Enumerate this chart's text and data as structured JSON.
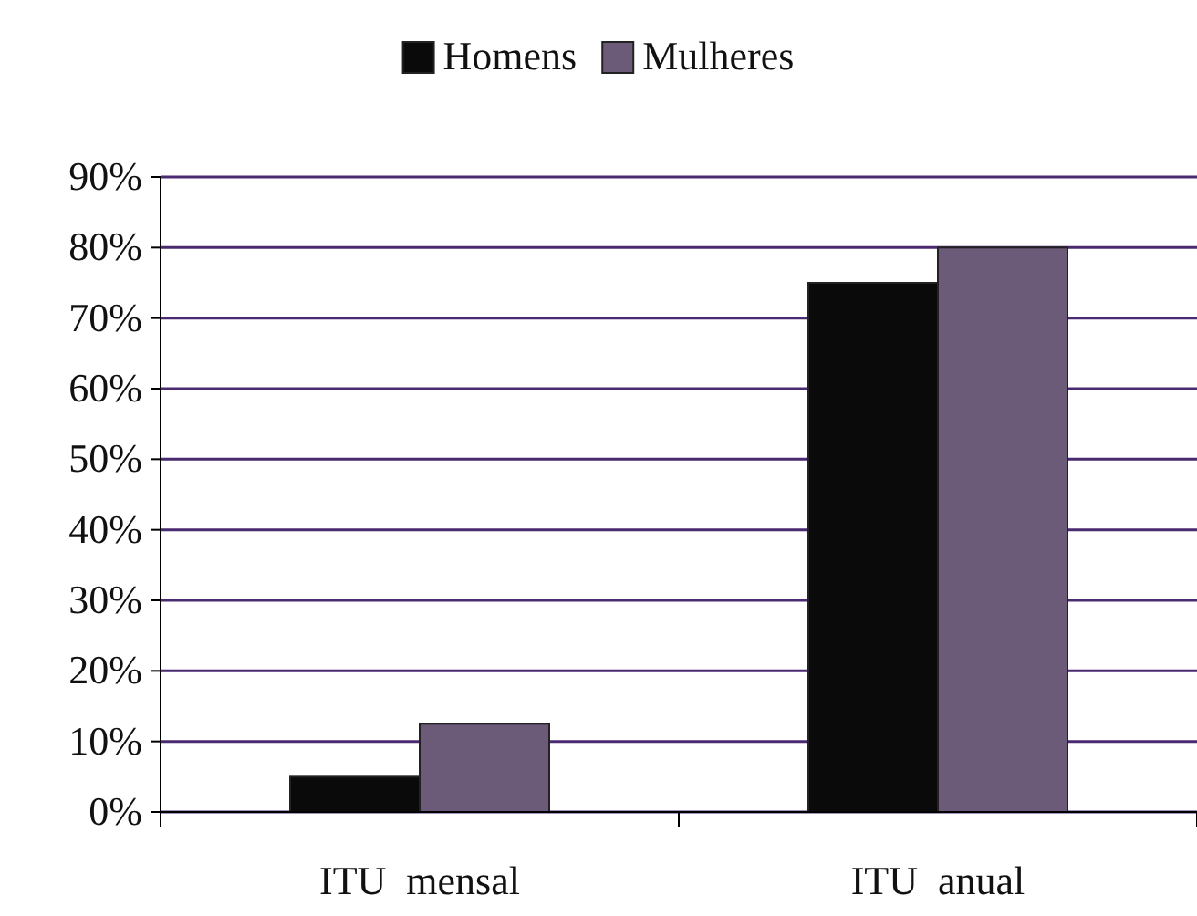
{
  "chart_data": {
    "type": "bar",
    "categories": [
      "ITU  mensal",
      "ITU  anual"
    ],
    "series": [
      {
        "name": "Homens",
        "color": "#0a0a0a",
        "values": [
          5,
          75
        ]
      },
      {
        "name": "Mulheres",
        "color": "#6b5a78",
        "values": [
          12.5,
          80
        ]
      }
    ],
    "ylim": [
      0,
      90
    ],
    "yticks": [
      {
        "value": 0,
        "label": "0%"
      },
      {
        "value": 10,
        "label": "10%"
      },
      {
        "value": 20,
        "label": "20%"
      },
      {
        "value": 30,
        "label": "30%"
      },
      {
        "value": 40,
        "label": "40%"
      },
      {
        "value": 50,
        "label": "50%"
      },
      {
        "value": 60,
        "label": "60%"
      },
      {
        "value": 70,
        "label": "70%"
      },
      {
        "value": 80,
        "label": "80%"
      },
      {
        "value": 90,
        "label": "90%"
      }
    ],
    "grid": "y",
    "legend": "top"
  }
}
